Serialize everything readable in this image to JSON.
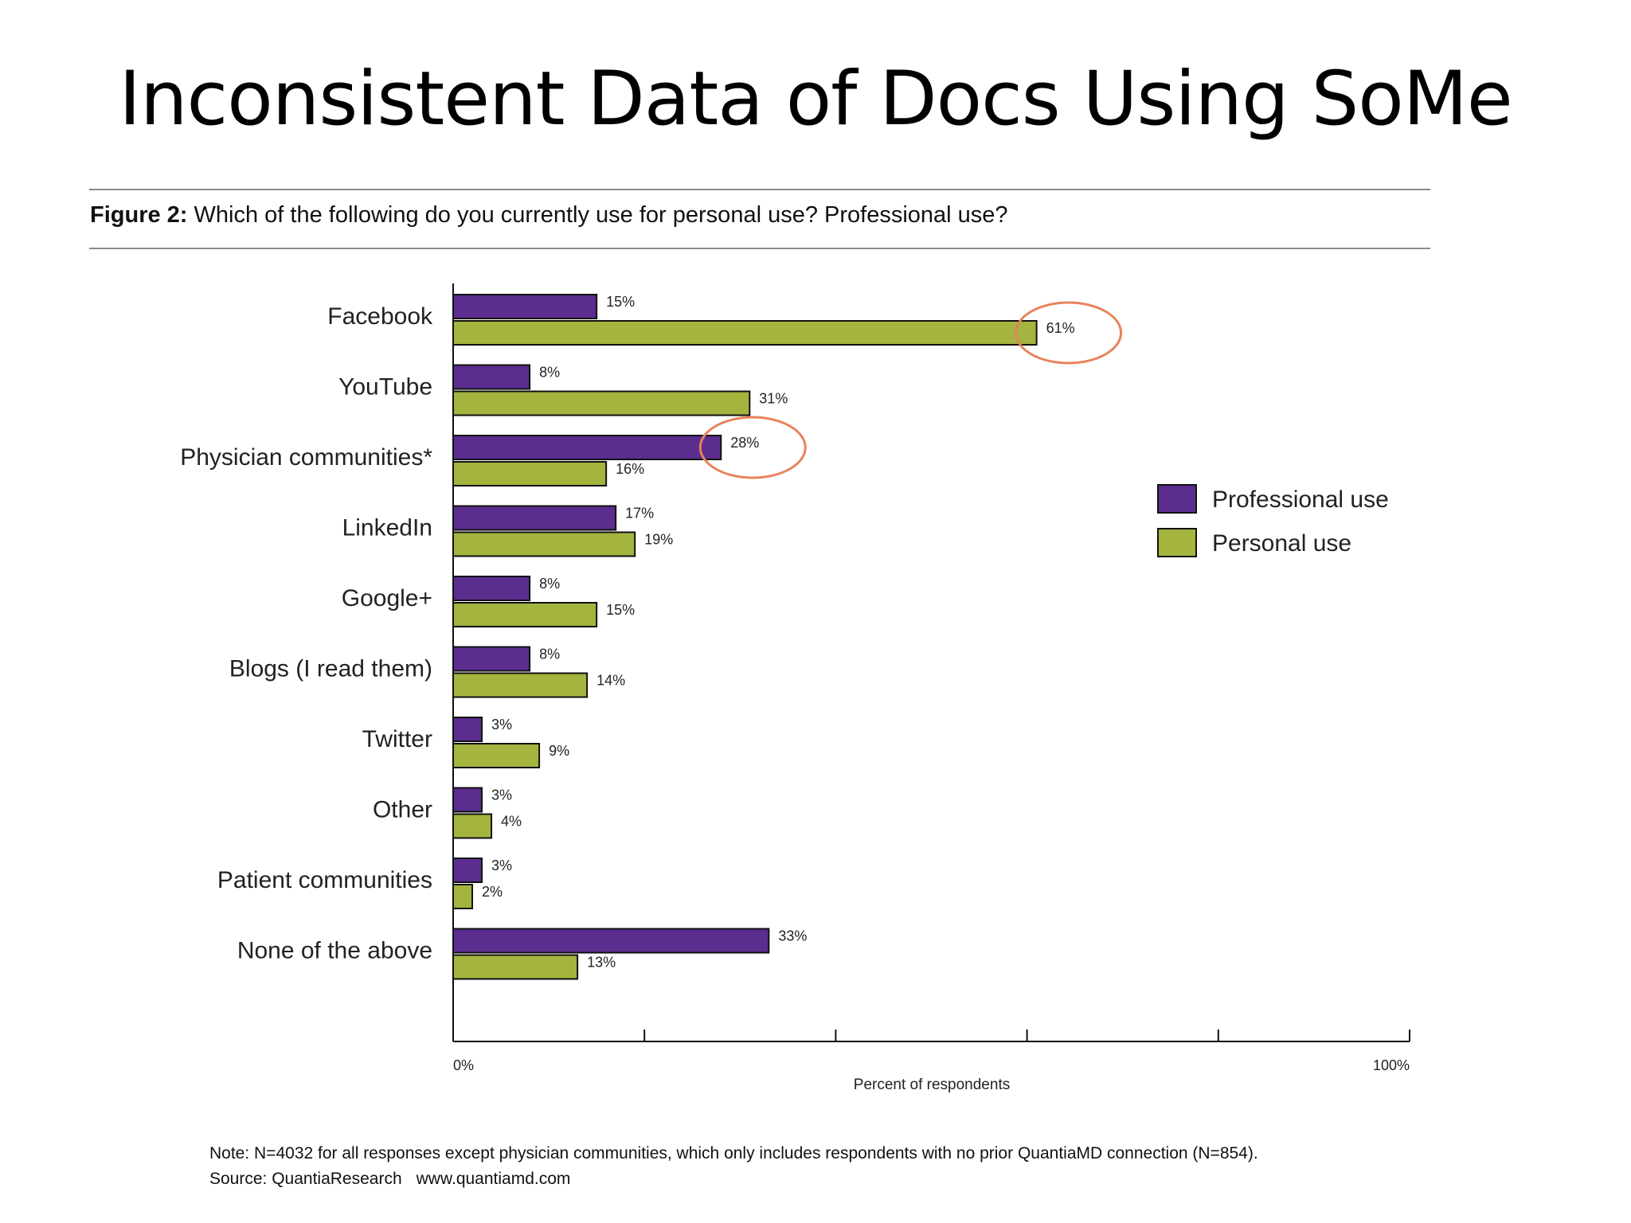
{
  "slide": {
    "title": "Inconsistent Data of Docs Using SoMe"
  },
  "figure": {
    "label": "Figure 2:",
    "question": "Which of the following do you currently use for personal use? Professional use?",
    "note": "Note: N=4032 for all responses except physician communities, which only includes respondents with no prior QuantiaMD connection (N=854).",
    "source": "Source: QuantiaResearch",
    "source_url": "www.quantiamd.com"
  },
  "colors": {
    "professional": "#5b2d8e",
    "personal": "#a4b43e",
    "highlight": "#e8825a"
  },
  "chart_data": {
    "type": "bar",
    "orientation": "horizontal",
    "categories": [
      "Facebook",
      "YouTube",
      "Physician communities*",
      "LinkedIn",
      "Google+",
      "Blogs (I read them)",
      "Twitter",
      "Other",
      "Patient communities",
      "None of the above"
    ],
    "series": [
      {
        "name": "Professional use",
        "values": [
          15,
          8,
          28,
          17,
          8,
          8,
          3,
          3,
          3,
          33
        ],
        "labels": [
          "15%",
          "8%",
          "28%",
          "17%",
          "8%",
          "8%",
          "3%",
          "3%",
          "3%",
          "33%"
        ]
      },
      {
        "name": "Personal use",
        "values": [
          61,
          31,
          16,
          19,
          15,
          14,
          9,
          4,
          2,
          13
        ],
        "labels": [
          "61%",
          "31%",
          "16%",
          "19%",
          "15%",
          "14%",
          "9%",
          "4%",
          "2%",
          "13%"
        ]
      }
    ],
    "xlim": [
      0,
      100
    ],
    "xtick_labels": [
      "0%",
      "100%"
    ],
    "xlabel": "Percent of respondents",
    "legend_position": "right",
    "highlighted": [
      "Facebook Personal use 61%",
      "Physician communities* Professional use 28%"
    ]
  }
}
